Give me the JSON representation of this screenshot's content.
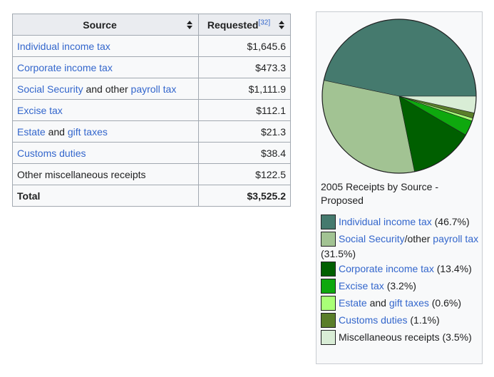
{
  "table": {
    "headers": {
      "source": "Source",
      "requested": "Requested",
      "ref": "[32]"
    },
    "rows": [
      {
        "parts": [
          {
            "text": "Individual income tax",
            "link": true
          }
        ],
        "value": "$1,645.6"
      },
      {
        "parts": [
          {
            "text": "Corporate income tax",
            "link": true
          }
        ],
        "value": "$473.3"
      },
      {
        "parts": [
          {
            "text": "Social Security",
            "link": true
          },
          {
            "text": " and other ",
            "link": false
          },
          {
            "text": "payroll tax",
            "link": true
          }
        ],
        "value": "$1,111.9"
      },
      {
        "parts": [
          {
            "text": "Excise tax",
            "link": true
          }
        ],
        "value": "$112.1"
      },
      {
        "parts": [
          {
            "text": "Estate",
            "link": true
          },
          {
            "text": " and ",
            "link": false
          },
          {
            "text": "gift taxes",
            "link": true
          }
        ],
        "value": "$21.3"
      },
      {
        "parts": [
          {
            "text": "Customs duties",
            "link": true
          }
        ],
        "value": "$38.4"
      },
      {
        "parts": [
          {
            "text": "Other miscellaneous receipts",
            "link": false
          }
        ],
        "value": "$122.5"
      }
    ],
    "total": {
      "label": "Total",
      "value": "$3,525.2"
    }
  },
  "figure": {
    "caption": "2005 Receipts by Source - Proposed",
    "legend": [
      {
        "color": "#457a6e",
        "parts": [
          {
            "text": "Individual income tax",
            "link": true
          },
          {
            "text": " (46.7%)",
            "link": false
          }
        ]
      },
      {
        "color": "#a2c393",
        "parts": [
          {
            "text": "Social Security",
            "link": true
          },
          {
            "text": "/other ",
            "link": false
          },
          {
            "text": "payroll tax",
            "link": true
          },
          {
            "text": " (31.5%)",
            "link": false
          }
        ]
      },
      {
        "color": "#005f00",
        "parts": [
          {
            "text": "Corporate income tax",
            "link": true
          },
          {
            "text": " (13.4%)",
            "link": false
          }
        ]
      },
      {
        "color": "#0ea80e",
        "parts": [
          {
            "text": "Excise tax",
            "link": true
          },
          {
            "text": " (3.2%)",
            "link": false
          }
        ]
      },
      {
        "color": "#a9ff77",
        "parts": [
          {
            "text": "Estate",
            "link": true
          },
          {
            "text": " and ",
            "link": false
          },
          {
            "text": "gift taxes",
            "link": true
          },
          {
            "text": " (0.6%)",
            "link": false
          }
        ]
      },
      {
        "color": "#5a7e2a",
        "parts": [
          {
            "text": "Customs duties",
            "link": true
          },
          {
            "text": " (1.1%)",
            "link": false
          }
        ]
      },
      {
        "color": "#d9edd6",
        "parts": [
          {
            "text": "Miscellaneous receipts (3.5%)",
            "link": false
          }
        ]
      }
    ]
  },
  "chart_data": {
    "type": "pie",
    "categories": [
      "Individual income tax",
      "Social Security/other payroll tax",
      "Corporate income tax",
      "Excise tax",
      "Estate and gift taxes",
      "Customs duties",
      "Miscellaneous receipts"
    ],
    "values": [
      46.7,
      31.5,
      13.4,
      3.2,
      0.6,
      1.1,
      3.5
    ],
    "colors": [
      "#457a6e",
      "#a2c393",
      "#005f00",
      "#0ea80e",
      "#a9ff77",
      "#5a7e2a",
      "#d9edd6"
    ],
    "title": "2005 Receipts by Source - Proposed"
  }
}
